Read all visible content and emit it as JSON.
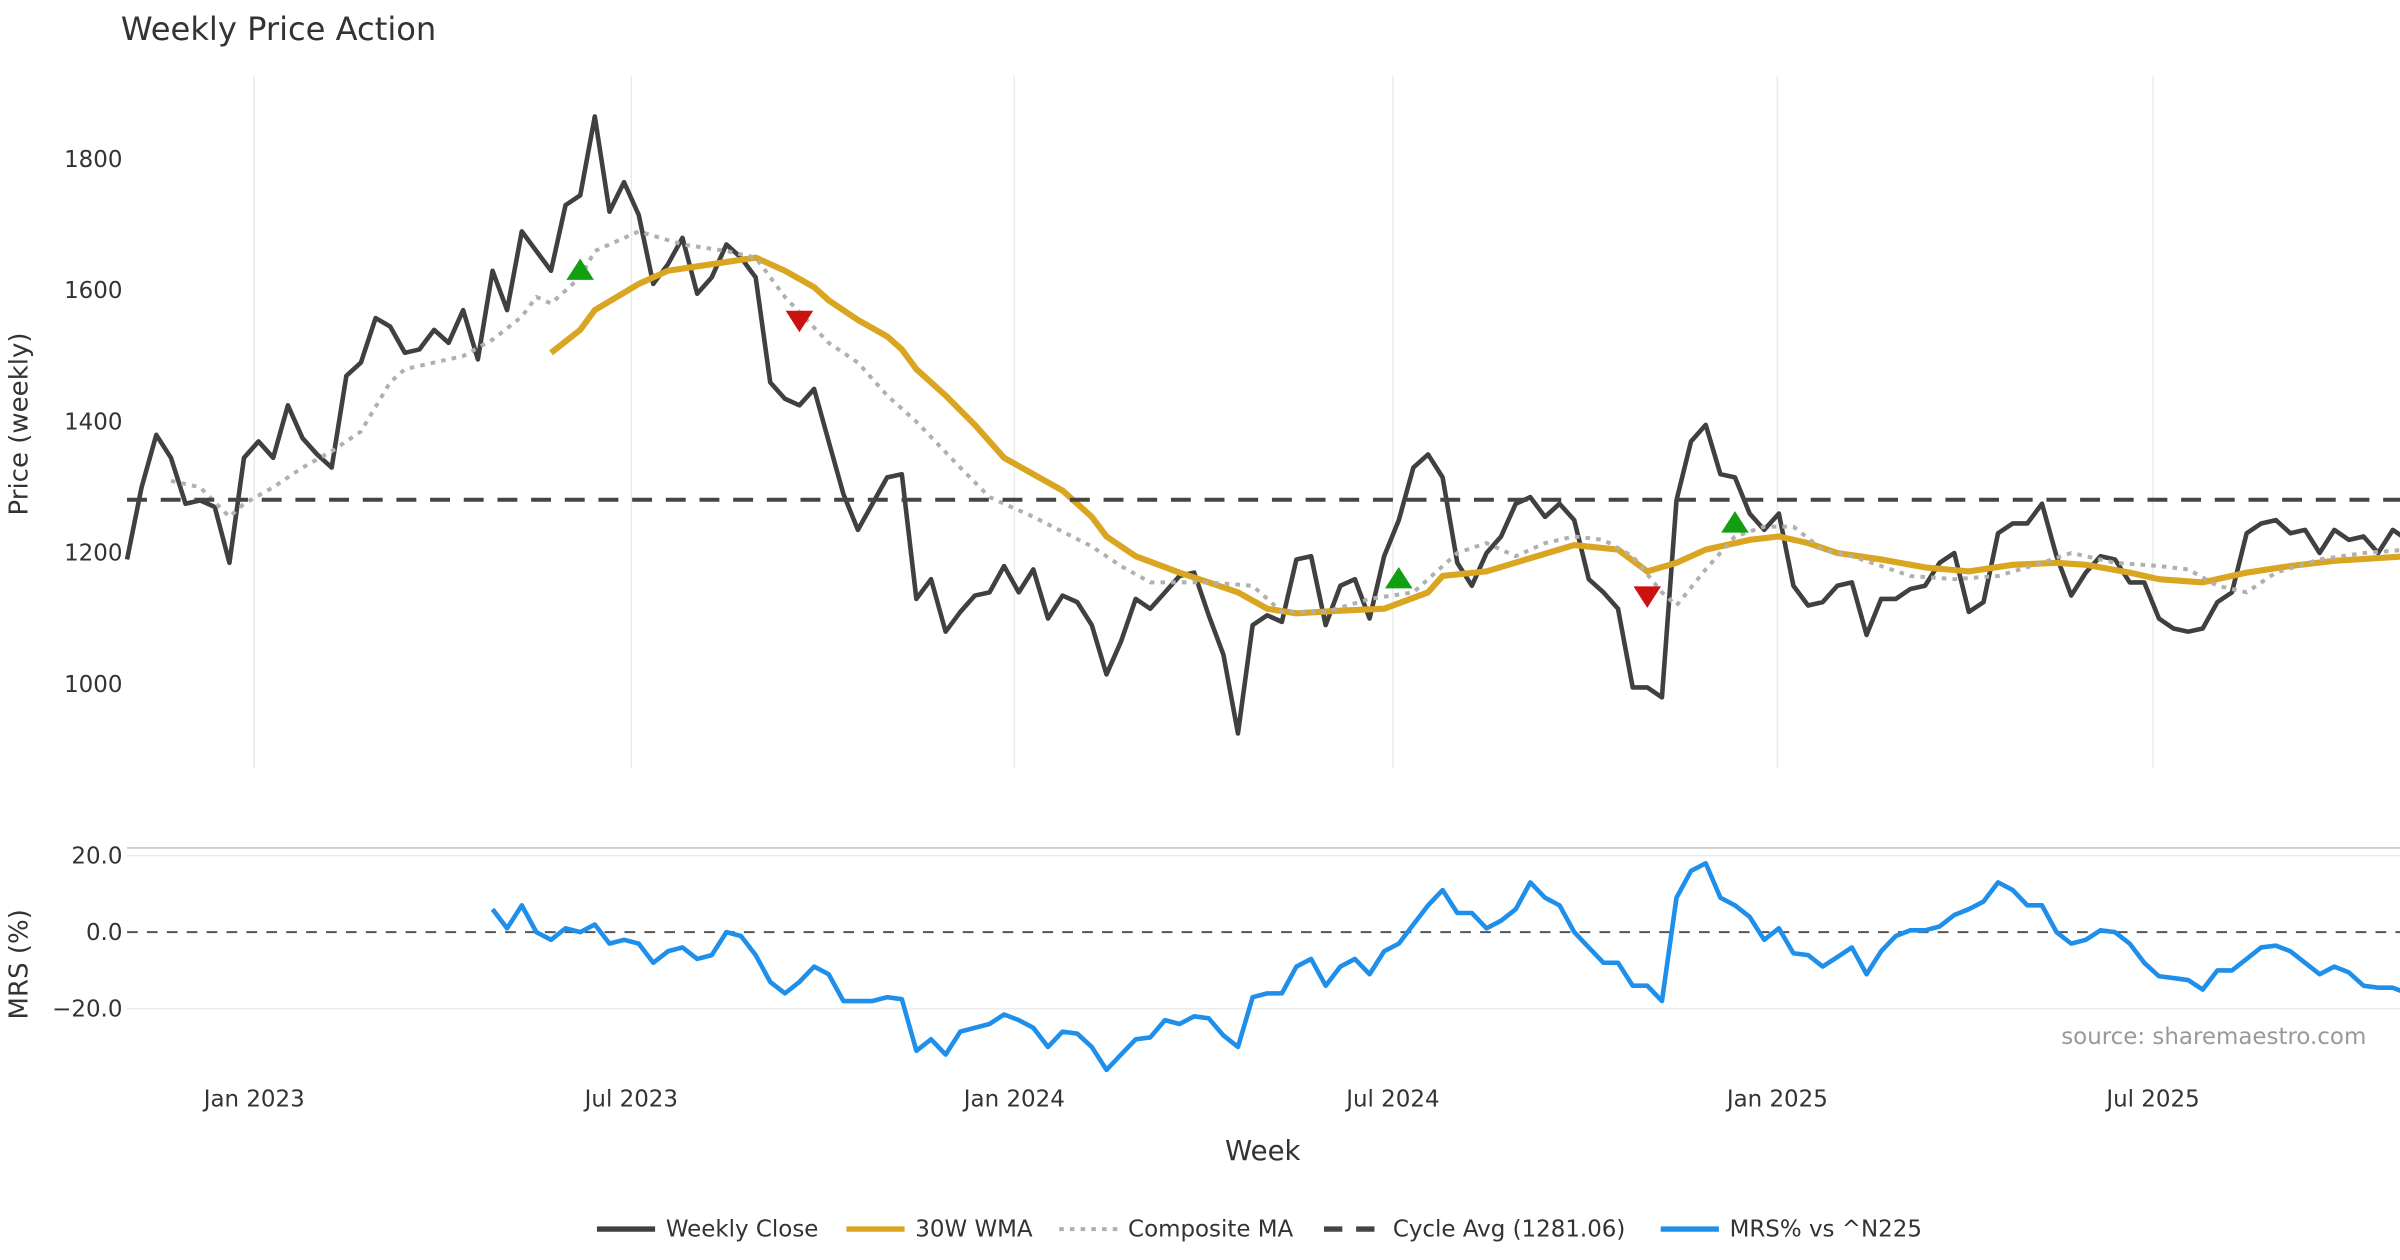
{
  "chart_data": {
    "type": "line",
    "title": "Weekly Price Action",
    "xlabel": "Week",
    "x_ticks": [
      {
        "label": "Jan 2023",
        "week_index": 8.7
      },
      {
        "label": "Jul 2023",
        "week_index": 34.5
      },
      {
        "label": "Jan 2024",
        "week_index": 60.7
      },
      {
        "label": "Jul 2024",
        "week_index": 86.6
      },
      {
        "label": "Jan 2025",
        "week_index": 112.9
      },
      {
        "label": "Jul 2025",
        "week_index": 138.6
      }
    ],
    "week_count": 156,
    "price_panel": {
      "ylabel": "Price (weekly)",
      "ylim": [
        880,
        1930
      ],
      "y_ticks": [
        1000,
        1200,
        1400,
        1600,
        1800
      ],
      "grid": "vertical"
    },
    "mrs_panel": {
      "ylabel": "MRS (%)",
      "ylim": [
        -40,
        22
      ],
      "y_ticks": [
        {
          "value": 20,
          "label": "20.0"
        },
        {
          "value": 0,
          "label": "0.0"
        },
        {
          "value": -20,
          "label": "−20.0"
        }
      ]
    },
    "series": [
      {
        "name": "Weekly Close",
        "color": "#404040",
        "style": "solid",
        "values": [
          1190,
          1300,
          1380,
          1345,
          1275,
          1280,
          1270,
          1185,
          1345,
          1370,
          1345,
          1425,
          1375,
          1350,
          1330,
          1470,
          1490,
          1558,
          1545,
          1505,
          1510,
          1540,
          1520,
          1570,
          1495,
          1630,
          1570,
          1690,
          1660,
          1630,
          1730,
          1745,
          1865,
          1720,
          1765,
          1715,
          1610,
          1640,
          1680,
          1595,
          1620,
          1670,
          1650,
          1620,
          1460,
          1435,
          1425,
          1450,
          1370,
          1290,
          1235,
          1275,
          1315,
          1320,
          1130,
          1160,
          1080,
          1110,
          1135,
          1140,
          1180,
          1140,
          1175,
          1100,
          1135,
          1125,
          1090,
          1015,
          1065,
          1130,
          1115,
          1140,
          1165,
          1170,
          1105,
          1045,
          925,
          1090,
          1105,
          1095,
          1190,
          1195,
          1090,
          1150,
          1160,
          1100,
          1195,
          1250,
          1330,
          1350,
          1315,
          1185,
          1150,
          1200,
          1225,
          1275,
          1285,
          1255,
          1275,
          1250,
          1160,
          1140,
          1115,
          995,
          995,
          980,
          1280,
          1370,
          1395,
          1320,
          1315,
          1260,
          1235,
          1260,
          1150,
          1120,
          1125,
          1150,
          1155,
          1075,
          1130,
          1130,
          1145,
          1150,
          1185,
          1200,
          1110,
          1125,
          1230,
          1245,
          1245,
          1275,
          1195,
          1135,
          1170,
          1195,
          1190,
          1155,
          1155,
          1100,
          1085,
          1080,
          1085,
          1125,
          1140,
          1230,
          1245,
          1250,
          1230,
          1235,
          1200,
          1235,
          1220,
          1225,
          1200,
          1235,
          1220
        ]
      },
      {
        "name": "30W WMA",
        "color": "#DAA520",
        "style": "solid",
        "points": [
          [
            29,
            1505
          ],
          [
            31,
            1540
          ],
          [
            32,
            1570
          ],
          [
            35,
            1610
          ],
          [
            37,
            1630
          ],
          [
            40,
            1640
          ],
          [
            43,
            1650
          ],
          [
            45,
            1630
          ],
          [
            47,
            1605
          ],
          [
            48,
            1585
          ],
          [
            50,
            1555
          ],
          [
            52,
            1530
          ],
          [
            53,
            1510
          ],
          [
            54,
            1480
          ],
          [
            56,
            1440
          ],
          [
            58,
            1395
          ],
          [
            60,
            1345
          ],
          [
            64,
            1295
          ],
          [
            66,
            1255
          ],
          [
            67,
            1225
          ],
          [
            69,
            1195
          ],
          [
            72,
            1170
          ],
          [
            74,
            1155
          ],
          [
            76,
            1140
          ],
          [
            78,
            1115
          ],
          [
            80,
            1108
          ],
          [
            83,
            1112
          ],
          [
            86,
            1115
          ],
          [
            89,
            1140
          ],
          [
            90,
            1165
          ],
          [
            93,
            1172
          ],
          [
            96,
            1192
          ],
          [
            99,
            1212
          ],
          [
            102,
            1205
          ],
          [
            104,
            1172
          ],
          [
            106,
            1185
          ],
          [
            108,
            1205
          ],
          [
            111,
            1220
          ],
          [
            113,
            1225
          ],
          [
            115,
            1215
          ],
          [
            117,
            1200
          ],
          [
            120,
            1190
          ],
          [
            123,
            1178
          ],
          [
            126,
            1172
          ],
          [
            129,
            1182
          ],
          [
            132,
            1185
          ],
          [
            134,
            1182
          ],
          [
            137,
            1170
          ],
          [
            139,
            1160
          ],
          [
            142,
            1155
          ],
          [
            145,
            1170
          ],
          [
            148,
            1180
          ],
          [
            151,
            1188
          ],
          [
            156,
            1195
          ]
        ]
      },
      {
        "name": "Composite MA",
        "color": "#b0b0b0",
        "style": "dotted",
        "points": [
          [
            3,
            1310
          ],
          [
            5,
            1300
          ],
          [
            7,
            1255
          ],
          [
            8,
            1275
          ],
          [
            10,
            1300
          ],
          [
            12,
            1330
          ],
          [
            14,
            1355
          ],
          [
            16,
            1385
          ],
          [
            18,
            1460
          ],
          [
            19,
            1480
          ],
          [
            21,
            1490
          ],
          [
            23,
            1500
          ],
          [
            25,
            1525
          ],
          [
            27,
            1560
          ],
          [
            28,
            1590
          ],
          [
            29,
            1580
          ],
          [
            31,
            1620
          ],
          [
            32,
            1660
          ],
          [
            35,
            1690
          ],
          [
            38,
            1670
          ],
          [
            41,
            1660
          ],
          [
            43,
            1650
          ],
          [
            45,
            1590
          ],
          [
            48,
            1520
          ],
          [
            50,
            1490
          ],
          [
            52,
            1440
          ],
          [
            54,
            1400
          ],
          [
            57,
            1330
          ],
          [
            59,
            1285
          ],
          [
            62,
            1255
          ],
          [
            66,
            1210
          ],
          [
            68,
            1180
          ],
          [
            70,
            1155
          ],
          [
            74,
            1155
          ],
          [
            77,
            1150
          ],
          [
            79,
            1110
          ],
          [
            82,
            1110
          ],
          [
            85,
            1130
          ],
          [
            88,
            1140
          ],
          [
            91,
            1200
          ],
          [
            93,
            1215
          ],
          [
            95,
            1195
          ],
          [
            97,
            1215
          ],
          [
            99,
            1225
          ],
          [
            101,
            1220
          ],
          [
            103,
            1195
          ],
          [
            105,
            1140
          ],
          [
            106,
            1120
          ],
          [
            108,
            1175
          ],
          [
            110,
            1225
          ],
          [
            112,
            1240
          ],
          [
            114,
            1240
          ],
          [
            116,
            1205
          ],
          [
            118,
            1195
          ],
          [
            120,
            1180
          ],
          [
            122,
            1165
          ],
          [
            125,
            1160
          ],
          [
            128,
            1165
          ],
          [
            131,
            1185
          ],
          [
            133,
            1200
          ],
          [
            136,
            1185
          ],
          [
            139,
            1180
          ],
          [
            141,
            1175
          ],
          [
            143,
            1150
          ],
          [
            145,
            1140
          ],
          [
            147,
            1170
          ],
          [
            150,
            1190
          ],
          [
            153,
            1200
          ],
          [
            156,
            1205
          ]
        ]
      },
      {
        "name": "Cycle Avg (1281.06)",
        "color": "#444444",
        "style": "dashed",
        "value": 1281.06
      },
      {
        "name": "MRS% vs ^N225",
        "color": "#1E8FEA",
        "style": "solid",
        "panel": "mrs",
        "start_index": 25,
        "values": [
          6,
          1,
          7,
          0,
          -2,
          1,
          0,
          2,
          -3,
          -2,
          -3,
          -8,
          -5,
          -4,
          -7,
          -6,
          0,
          -1,
          -6,
          -13,
          -16,
          -13,
          -9,
          -11,
          -18,
          -18,
          -18,
          -17,
          -17.5,
          -31,
          -28,
          -32,
          -26,
          -25,
          -24,
          -21.5,
          -23,
          -25,
          -30,
          -26,
          -26.5,
          -30,
          -36,
          -32,
          -28,
          -27.5,
          -23,
          -24,
          -22,
          -22.5,
          -27,
          -30,
          -17,
          -16,
          -16,
          -9,
          -7,
          -14,
          -9,
          -7,
          -11,
          -5,
          -3,
          2,
          7,
          11,
          5,
          5,
          1,
          3,
          6,
          13,
          9,
          7,
          0,
          -4,
          -8,
          -8,
          -14,
          -14,
          -18,
          9,
          16,
          18,
          9,
          7,
          4,
          -2,
          1,
          -5.5,
          -6,
          -9,
          -6.5,
          -4,
          -11,
          -5,
          -1,
          0.5,
          0.5,
          1.5,
          4.5,
          6,
          8,
          13,
          11,
          7,
          7,
          0,
          -3,
          -2,
          0.5,
          0,
          -3,
          -8,
          -11.5,
          -12,
          -12.5,
          -15,
          -10,
          -10,
          -7,
          -4,
          -3.5,
          -5,
          -8,
          -11,
          -9,
          -10.5,
          -14,
          -14.5,
          -14.5,
          -16
        ]
      }
    ],
    "signals": [
      {
        "type": "buy",
        "week_index": 31,
        "price": 1630,
        "color": "#12A012"
      },
      {
        "type": "sell",
        "week_index": 46,
        "price": 1555,
        "color": "#CC1111"
      },
      {
        "type": "buy",
        "week_index": 87,
        "price": 1160,
        "color": "#12A012"
      },
      {
        "type": "sell",
        "week_index": 104,
        "price": 1135,
        "color": "#CC1111"
      },
      {
        "type": "buy",
        "week_index": 110,
        "price": 1245,
        "color": "#12A012"
      }
    ],
    "annotation": "source: sharemaestro.com",
    "legend": {
      "placement": "bottom-center",
      "items": [
        "Weekly Close",
        "30W WMA",
        "Composite MA",
        "Cycle Avg (1281.06)",
        "MRS% vs ^N225"
      ]
    }
  }
}
